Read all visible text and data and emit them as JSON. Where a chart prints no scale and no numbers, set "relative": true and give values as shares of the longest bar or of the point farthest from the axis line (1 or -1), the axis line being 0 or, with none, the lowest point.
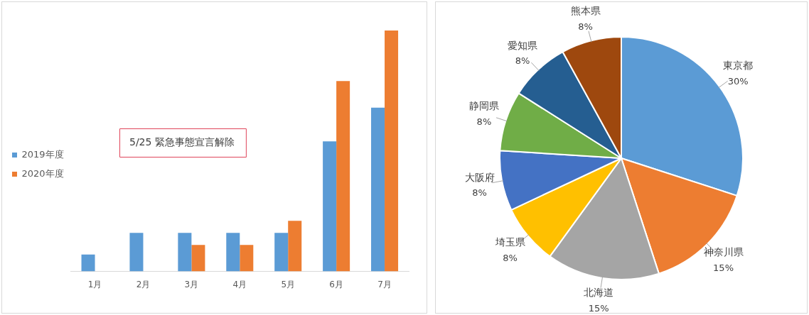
{
  "chart_data": [
    {
      "type": "bar",
      "relative": true,
      "categories": [
        "1月",
        "2月",
        "3月",
        "4月",
        "5月",
        "6月",
        "7月"
      ],
      "series": [
        {
          "name": "2019年度",
          "color": "#5b9bd5",
          "values": [
            0.07,
            0.16,
            0.16,
            0.16,
            0.16,
            0.54,
            0.68
          ]
        },
        {
          "name": "2020年度",
          "color": "#ed7d31",
          "values": [
            null,
            null,
            0.11,
            0.11,
            0.21,
            0.79,
            1
          ]
        }
      ],
      "legend": "left",
      "grid": false,
      "annotations": [
        "5/25 緊急事態宣言解除"
      ]
    },
    {
      "type": "pie",
      "categories": [
        "東京都",
        "神奈川県",
        "北海道",
        "埼玉県",
        "大阪府",
        "静岡県",
        "愛知県",
        "熊本県"
      ],
      "values": [
        30,
        15,
        15,
        8,
        8,
        8,
        8,
        8
      ],
      "colors": [
        "#5b9bd5",
        "#ed7d31",
        "#a5a5a5",
        "#ffc000",
        "#4472c4",
        "#70ad47",
        "#255e91",
        "#9e480e"
      ],
      "value_labels": [
        "30%",
        "15%",
        "15%",
        "8%",
        "8%",
        "8%",
        "8%",
        "8%"
      ],
      "legend": false
    }
  ]
}
